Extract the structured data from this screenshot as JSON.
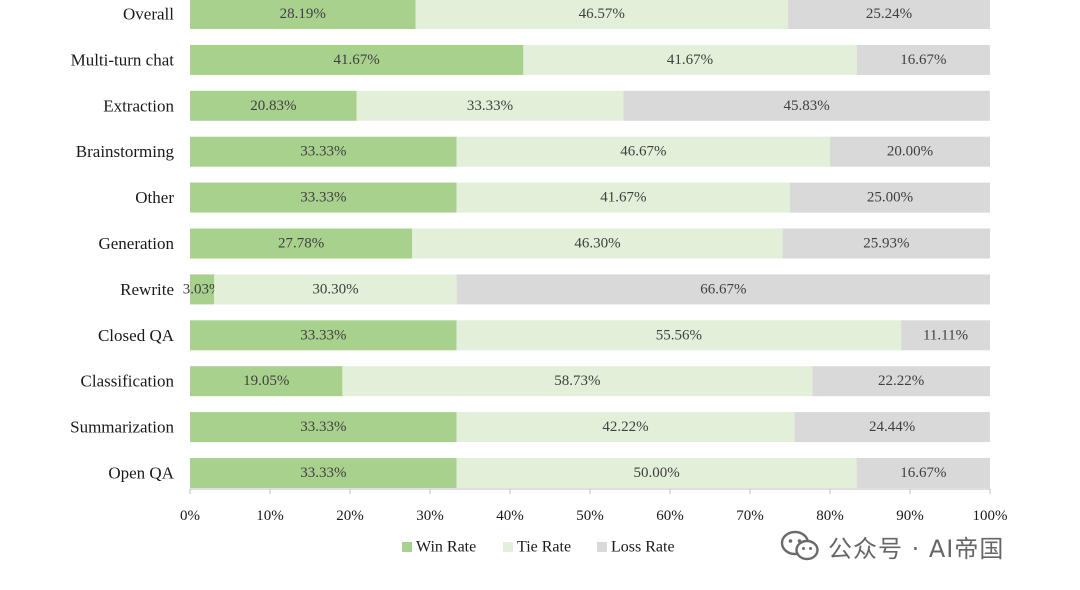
{
  "chart_data": {
    "type": "bar",
    "orientation": "horizontal",
    "stacked": true,
    "title": "",
    "xlabel": "",
    "ylabel": "",
    "xlim": [
      0,
      100
    ],
    "x_ticks": [
      "0%",
      "10%",
      "20%",
      "30%",
      "40%",
      "50%",
      "60%",
      "70%",
      "80%",
      "90%",
      "100%"
    ],
    "categories": [
      "Overall",
      "Multi-turn chat",
      "Extraction",
      "Brainstorming",
      "Other",
      "Generation",
      "Rewrite",
      "Closed QA",
      "Classification",
      "Summarization",
      "Open QA"
    ],
    "series": [
      {
        "name": "Win Rate",
        "color": "#a9d18e",
        "values": [
          28.19,
          41.67,
          20.83,
          33.33,
          33.33,
          27.78,
          3.03,
          33.33,
          19.05,
          33.33,
          33.33
        ],
        "labels": [
          "28.19%",
          "41.67%",
          "20.83%",
          "33.33%",
          "33.33%",
          "27.78%",
          "3.03%",
          "33.33%",
          "19.05%",
          "33.33%",
          "33.33%"
        ]
      },
      {
        "name": "Tie Rate",
        "color": "#e2f0d9",
        "values": [
          46.57,
          41.67,
          33.33,
          46.67,
          41.67,
          46.3,
          30.3,
          55.56,
          58.73,
          42.22,
          50.0
        ],
        "labels": [
          "46.57%",
          "41.67%",
          "33.33%",
          "46.67%",
          "41.67%",
          "46.30%",
          "30.30%",
          "55.56%",
          "58.73%",
          "42.22%",
          "50.00%"
        ]
      },
      {
        "name": "Loss Rate",
        "color": "#d9d9d9",
        "values": [
          25.24,
          16.67,
          45.83,
          20.0,
          25.0,
          25.93,
          66.67,
          11.11,
          22.22,
          24.44,
          16.67
        ],
        "labels": [
          "25.24%",
          "16.67%",
          "45.83%",
          "20.00%",
          "25.00%",
          "25.93%",
          "66.67%",
          "11.11%",
          "22.22%",
          "24.44%",
          "16.67%"
        ]
      }
    ],
    "legend": {
      "position": "bottom",
      "entries": [
        "Win Rate",
        "Tie Rate",
        "Loss Rate"
      ]
    }
  },
  "watermark": {
    "icon": "wechat-icon",
    "text": "公众号 · AI帝国"
  }
}
